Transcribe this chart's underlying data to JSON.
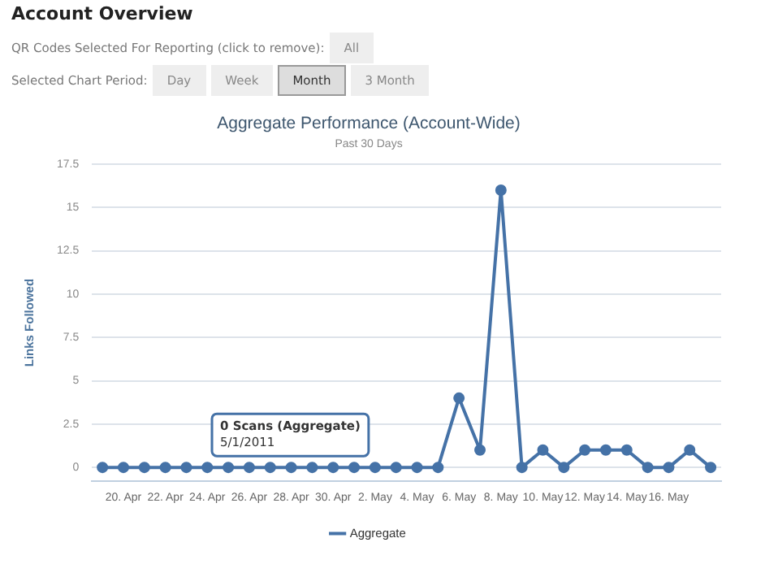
{
  "chart_data": {
    "type": "line",
    "title": "Aggregate Performance (Account-Wide)",
    "subtitle": "Past 30 Days",
    "ylabel": "Links Followed",
    "categories": [
      null,
      "20. Apr",
      null,
      "22. Apr",
      null,
      "24. Apr",
      null,
      "26. Apr",
      null,
      "28. Apr",
      null,
      "30. Apr",
      null,
      "2. May",
      null,
      "4. May",
      null,
      "6. May",
      null,
      "8. May",
      null,
      "10. May",
      null,
      "12. May",
      null,
      "14. May",
      null,
      "16. May",
      null,
      null
    ],
    "series": [
      {
        "name": "Aggregate",
        "color": "#4572a7",
        "values": [
          0,
          0,
          0,
          0,
          0,
          0,
          0,
          0,
          0,
          0,
          0,
          0,
          0,
          0,
          0,
          0,
          0,
          4,
          1,
          16,
          0,
          1,
          0,
          1,
          1,
          1,
          0,
          0,
          1,
          0
        ]
      }
    ],
    "ylim": [
      -0.8,
      17.5
    ],
    "yticks": [
      0,
      2.5,
      5,
      7.5,
      10,
      12.5,
      15,
      17.5
    ],
    "grid": "y",
    "legend": "bottom",
    "marker": "circle",
    "line_style": "solid",
    "annotations": [
      "Account Overview",
      "QR Codes Selected For Reporting (click to remove):",
      "All",
      "Selected Chart Period:",
      "Day",
      "Week",
      "Month",
      "3 Month",
      {
        "text": "0 Scans (Aggregate)\n5/1/2011",
        "x": "2. May",
        "y": 0
      }
    ]
  }
}
